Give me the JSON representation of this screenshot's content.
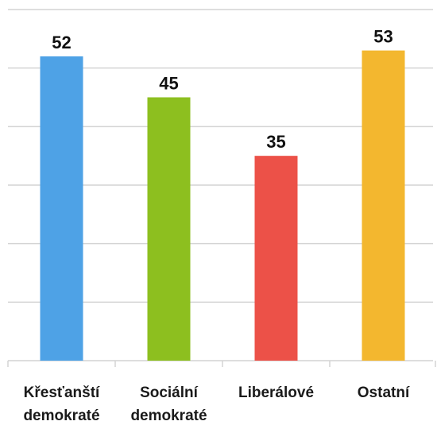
{
  "chart_data": {
    "type": "bar",
    "categories": [
      "Křesťanští demokraté",
      "Sociální demokraté",
      "Liberálové",
      "Ostatní"
    ],
    "values": [
      52,
      45,
      35,
      53
    ],
    "colors": [
      "#4ea2e6",
      "#8dbf1f",
      "#ec5148",
      "#f3b72f"
    ],
    "ylim": [
      0,
      60
    ],
    "yticks": [
      0,
      10,
      20,
      30,
      40,
      50,
      60
    ],
    "grid": true
  }
}
